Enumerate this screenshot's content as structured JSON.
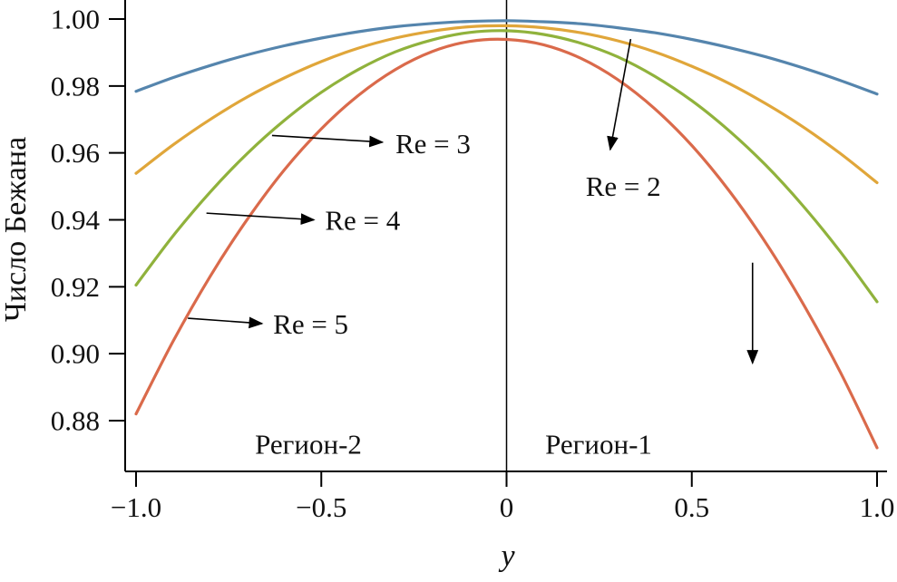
{
  "figure": {
    "background": "#ffffff"
  },
  "chart_data": {
    "type": "line",
    "title": "",
    "xlabel": "y",
    "ylabel": "Число Бежана",
    "xlim": [
      -1.0,
      1.0
    ],
    "ylim": [
      0.865,
      1.005
    ],
    "grid": false,
    "legend_position": "none (inline arrow annotations)",
    "x_ticks": [
      -1.0,
      -0.5,
      0,
      0.5,
      1.0
    ],
    "x_tick_labels": [
      "−1.0",
      "−0.5",
      "0",
      "0.5",
      "1.0"
    ],
    "y_ticks": [
      1.0,
      0.98,
      0.96,
      0.94,
      0.92,
      0.9,
      0.88
    ],
    "y_tick_labels": [
      "1.00",
      "0.98",
      "0.96",
      "0.94",
      "0.92",
      "0.90",
      "0.88"
    ],
    "divider_x": 0,
    "region_labels": {
      "left": "Регион-2",
      "right": "Регион-1"
    },
    "x": [
      -1.0,
      -0.9,
      -0.8,
      -0.7,
      -0.6,
      -0.5,
      -0.4,
      -0.3,
      -0.2,
      -0.1,
      0.0,
      0.1,
      0.2,
      0.3,
      0.4,
      0.5,
      0.6,
      0.7,
      0.8,
      0.9,
      1.0
    ],
    "series": [
      {
        "name": "Re = 2",
        "color": "#5585ad",
        "values": [
          0.9784,
          0.9825,
          0.9861,
          0.9893,
          0.992,
          0.9943,
          0.9962,
          0.9977,
          0.9987,
          0.9993,
          0.9995,
          0.9992,
          0.9986,
          0.9974,
          0.9959,
          0.9939,
          0.9915,
          0.9887,
          0.9854,
          0.9817,
          0.9776
        ]
      },
      {
        "name": "Re = 3",
        "color": "#e0a63a",
        "values": [
          0.9539,
          0.9624,
          0.97,
          0.9767,
          0.9824,
          0.9873,
          0.9913,
          0.9943,
          0.9964,
          0.9977,
          0.998,
          0.9974,
          0.9959,
          0.9935,
          0.9902,
          0.9859,
          0.9808,
          0.9747,
          0.9678,
          0.9599,
          0.9511
        ]
      },
      {
        "name": "Re = 4",
        "color": "#90b23c",
        "values": [
          0.9205,
          0.9352,
          0.9483,
          0.9598,
          0.9697,
          0.9781,
          0.9849,
          0.9902,
          0.9938,
          0.996,
          0.9965,
          0.9954,
          0.9928,
          0.9887,
          0.9829,
          0.9756,
          0.9667,
          0.9563,
          0.9442,
          0.9306,
          0.9155
        ]
      },
      {
        "name": "Re = 5",
        "color": "#da6a4b",
        "values": [
          0.882,
          0.9037,
          0.9231,
          0.9401,
          0.9549,
          0.9672,
          0.9772,
          0.9849,
          0.9903,
          0.9933,
          0.9939,
          0.9923,
          0.9883,
          0.9819,
          0.9732,
          0.9622,
          0.9488,
          0.9331,
          0.915,
          0.8947,
          0.8719
        ]
      }
    ],
    "annotations": [
      {
        "label": "Re = 2",
        "lx": 0.315,
        "ly": 0.95,
        "anchor": "middle",
        "arrow": [
          0.335,
          0.994,
          0.28,
          0.961
        ]
      },
      {
        "label": "Re = 3",
        "lx": -0.3,
        "ly": 0.9628,
        "anchor": "start",
        "arrow": [
          -0.633,
          0.9652,
          -0.335,
          0.9632
        ]
      },
      {
        "label": "Re = 4",
        "lx": -0.49,
        "ly": 0.9398,
        "anchor": "start",
        "arrow": [
          -0.81,
          0.942,
          -0.52,
          0.94
        ]
      },
      {
        "label": "Re = 5",
        "lx": -0.63,
        "ly": 0.9088,
        "anchor": "start",
        "arrow": [
          -0.86,
          0.9106,
          -0.66,
          0.909
        ]
      },
      {
        "label": "",
        "arrow": [
          0.664,
          0.9272,
          0.664,
          0.8972
        ]
      }
    ]
  }
}
